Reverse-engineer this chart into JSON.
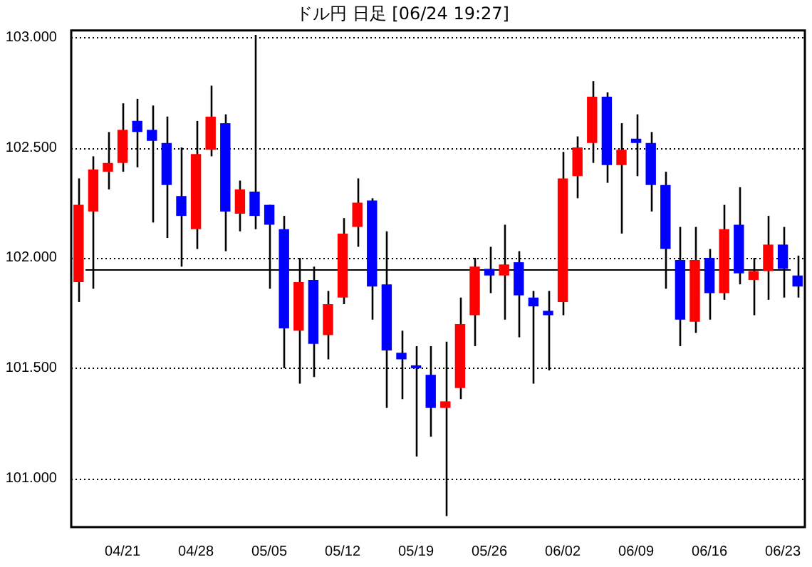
{
  "chart_data": {
    "type": "candlestick",
    "title": "ドル円 日足 [06/24 19:27]",
    "categories": [
      null,
      null,
      null,
      "04/21",
      null,
      null,
      null,
      null,
      "04/28",
      null,
      null,
      null,
      null,
      "05/05",
      null,
      null,
      null,
      null,
      "05/12",
      null,
      null,
      null,
      null,
      "05/19",
      null,
      null,
      null,
      null,
      "05/26",
      null,
      null,
      null,
      null,
      "06/02",
      null,
      null,
      null,
      null,
      "06/09",
      null,
      null,
      null,
      null,
      "06/16",
      null,
      null,
      null,
      null,
      "06/23",
      null
    ],
    "ohlc": [
      [
        101.89,
        102.36,
        101.8,
        102.24
      ],
      [
        102.21,
        102.46,
        101.86,
        102.4
      ],
      [
        102.39,
        102.57,
        102.31,
        102.43
      ],
      [
        102.43,
        102.7,
        102.39,
        102.58
      ],
      [
        102.62,
        102.72,
        102.41,
        102.57
      ],
      [
        102.58,
        102.69,
        102.16,
        102.53
      ],
      [
        102.52,
        102.64,
        102.09,
        102.33
      ],
      [
        102.28,
        102.5,
        101.96,
        102.19
      ],
      [
        102.13,
        102.62,
        102.04,
        102.47
      ],
      [
        102.49,
        102.78,
        102.46,
        102.64
      ],
      [
        102.61,
        102.65,
        102.03,
        102.21
      ],
      [
        102.2,
        102.35,
        102.12,
        102.31
      ],
      [
        102.3,
        103.01,
        102.13,
        102.19
      ],
      [
        102.24,
        102.24,
        101.86,
        102.15
      ],
      [
        102.13,
        102.19,
        101.5,
        101.68
      ],
      [
        101.67,
        102.0,
        101.43,
        101.89
      ],
      [
        101.9,
        101.96,
        101.46,
        101.61
      ],
      [
        101.65,
        101.85,
        101.54,
        101.79
      ],
      [
        101.82,
        102.18,
        101.79,
        102.11
      ],
      [
        102.14,
        102.36,
        102.05,
        102.25
      ],
      [
        102.26,
        102.27,
        101.72,
        101.87
      ],
      [
        101.88,
        102.12,
        101.32,
        101.58
      ],
      [
        101.57,
        101.67,
        101.36,
        101.54
      ],
      [
        101.51,
        101.6,
        101.1,
        101.5
      ],
      [
        101.47,
        101.6,
        101.19,
        101.32
      ],
      [
        101.32,
        101.62,
        100.83,
        101.35
      ],
      [
        101.41,
        101.82,
        101.36,
        101.7
      ],
      [
        101.74,
        102.0,
        101.6,
        101.96
      ],
      [
        101.95,
        102.05,
        101.84,
        101.92
      ],
      [
        101.92,
        102.15,
        101.72,
        101.97
      ],
      [
        101.98,
        102.03,
        101.64,
        101.83
      ],
      [
        101.82,
        101.85,
        101.43,
        101.78
      ],
      [
        101.76,
        101.85,
        101.49,
        101.74
      ],
      [
        101.8,
        102.48,
        101.74,
        102.36
      ],
      [
        102.37,
        102.55,
        102.27,
        102.5
      ],
      [
        102.52,
        102.8,
        102.43,
        102.73
      ],
      [
        102.73,
        102.75,
        102.34,
        102.42
      ],
      [
        102.42,
        102.61,
        102.11,
        102.49
      ],
      [
        102.54,
        102.65,
        102.37,
        102.52
      ],
      [
        102.52,
        102.57,
        102.21,
        102.33
      ],
      [
        102.33,
        102.39,
        101.86,
        102.04
      ],
      [
        101.99,
        102.14,
        101.6,
        101.72
      ],
      [
        101.71,
        102.14,
        101.66,
        101.99
      ],
      [
        102.0,
        102.04,
        101.72,
        101.84
      ],
      [
        101.84,
        102.24,
        101.81,
        102.13
      ],
      [
        102.15,
        102.32,
        101.88,
        101.93
      ],
      [
        101.9,
        102.0,
        101.74,
        101.94
      ],
      [
        101.94,
        102.19,
        101.81,
        102.06
      ],
      [
        102.06,
        102.14,
        101.82,
        101.95
      ],
      [
        101.92,
        102.01,
        101.82,
        101.87
      ]
    ],
    "colors": [
      "#ff0000",
      "#ff0000",
      "#ff0000",
      "#ff0000",
      "#0000ff",
      "#0000ff",
      "#0000ff",
      "#0000ff",
      "#ff0000",
      "#ff0000",
      "#0000ff",
      "#ff0000",
      "#0000ff",
      "#0000ff",
      "#0000ff",
      "#ff0000",
      "#0000ff",
      "#ff0000",
      "#ff0000",
      "#ff0000",
      "#0000ff",
      "#0000ff",
      "#0000ff",
      "#0000ff",
      "#0000ff",
      "#ff0000",
      "#ff0000",
      "#ff0000",
      "#0000ff",
      "#ff0000",
      "#0000ff",
      "#0000ff",
      "#0000ff",
      "#ff0000",
      "#ff0000",
      "#ff0000",
      "#0000ff",
      "#ff0000",
      "#0000ff",
      "#0000ff",
      "#0000ff",
      "#0000ff",
      "#ff0000",
      "#0000ff",
      "#ff0000",
      "#0000ff",
      "#ff0000",
      "#ff0000",
      "#0000ff",
      "#0000ff"
    ],
    "ylim": [
      100.78,
      103.03
    ],
    "yticks": [
      {
        "value": 101,
        "label": "101.000"
      },
      {
        "value": 101.5,
        "label": "101.500"
      },
      {
        "value": 102,
        "label": "102.000"
      },
      {
        "value": 102.5,
        "label": "102.500"
      },
      {
        "value": 103,
        "label": "103.000"
      }
    ],
    "grid": "y",
    "ref_lines": [
      {
        "axis": "y",
        "value": 101.95,
        "color": "#000000"
      }
    ]
  }
}
